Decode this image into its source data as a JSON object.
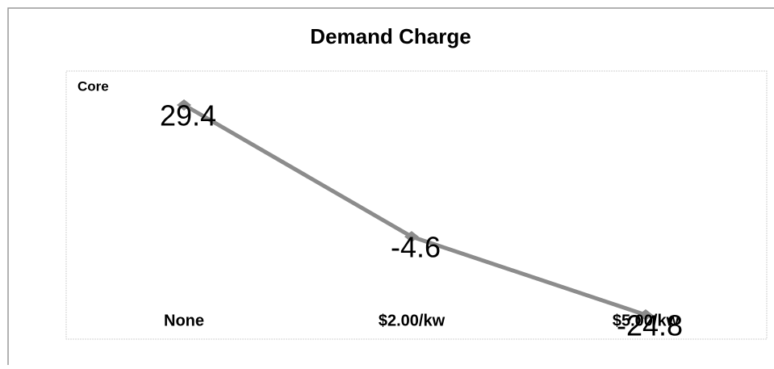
{
  "chart_data": {
    "type": "line",
    "title": "Demand Charge",
    "y_label": "Core",
    "categories": [
      "None",
      "$2.00/kw",
      "$5.00/kw"
    ],
    "series": [
      {
        "name": "Core",
        "color": "#8c8c8c",
        "values": [
          29.4,
          -4.6,
          -24.8
        ]
      }
    ]
  }
}
